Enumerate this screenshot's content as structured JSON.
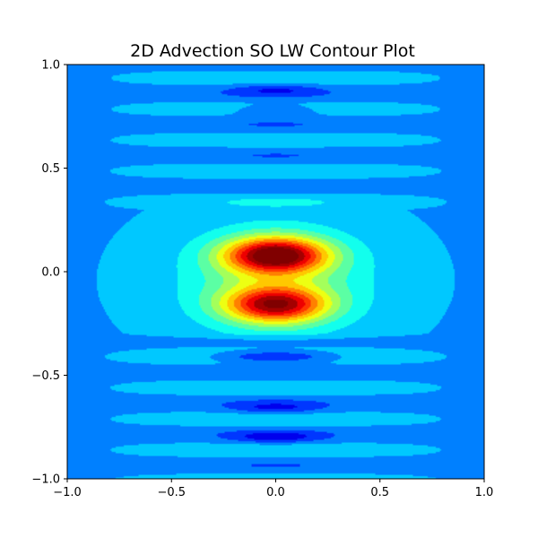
{
  "chart_data": {
    "type": "heatmap",
    "title": "2D Advection SO LW Contour Plot",
    "xlabel": "",
    "ylabel": "",
    "xlim": [
      -1.0,
      1.0
    ],
    "ylim": [
      -1.0,
      1.0
    ],
    "colormap": "jet",
    "grid": false,
    "legend": "none",
    "x_ticks": [
      -1.0,
      -0.5,
      0.0,
      0.5,
      1.0
    ],
    "y_ticks": [
      -1.0,
      -0.5,
      0.0,
      0.5,
      1.0
    ],
    "x_tick_labels": [
      "−1.0",
      "−0.5",
      "0.0",
      "0.5",
      "1.0"
    ],
    "y_tick_labels": [
      "−1.0",
      "−0.5",
      "0.0",
      "0.5",
      "1.0"
    ],
    "background_level": 0.28,
    "features": [
      {
        "kind": "peak",
        "x": 0.0,
        "y": 0.08,
        "value": 0.96
      },
      {
        "kind": "peak",
        "x": 0.0,
        "y": -0.16,
        "value": 0.86
      },
      {
        "kind": "trough",
        "x": 0.0,
        "y": -0.41,
        "value": 0.05
      },
      {
        "kind": "trough",
        "x": 0.0,
        "y": -0.66,
        "value": 0.16
      },
      {
        "kind": "trough",
        "x": 0.0,
        "y": -0.8,
        "value": 0.14
      },
      {
        "kind": "trough",
        "x": 0.0,
        "y": 0.78,
        "value": 0.16
      },
      {
        "kind": "trough",
        "x": 0.0,
        "y": 0.88,
        "value": 0.18
      }
    ]
  }
}
